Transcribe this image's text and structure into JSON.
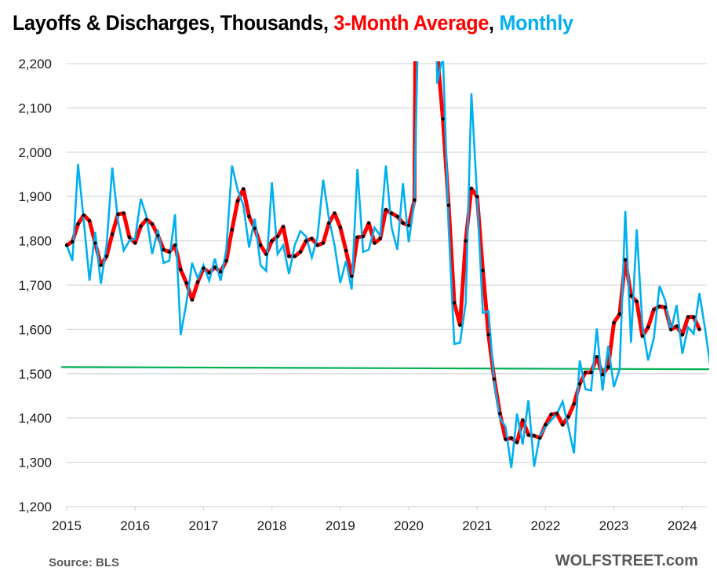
{
  "title": {
    "part1": "Layoffs & Discharges, Thousands, ",
    "part2": "3-Month Average",
    "part3": ", ",
    "part4": "Monthly"
  },
  "colors": {
    "monthly": "#00b0f0",
    "avg": "#ff0000",
    "avg_dots": "#000000",
    "reference": "#00b050",
    "grid": "#d9d9d9"
  },
  "footer": {
    "source": "Source: BLS",
    "brand": "WOLFSTREET.com"
  },
  "chart_data": {
    "type": "line",
    "title": "Layoffs & Discharges, Thousands, 3-Month Average, Monthly",
    "xlabel": "",
    "ylabel": "",
    "ylim": [
      1200,
      2200
    ],
    "yticks": [
      1200,
      1300,
      1400,
      1500,
      1600,
      1700,
      1800,
      1900,
      2000,
      2100,
      2200
    ],
    "ytick_labels": [
      "1,200",
      "1,300",
      "1,400",
      "1,500",
      "1,600",
      "1,700",
      "1,800",
      "1,900",
      "2,000",
      "2,100",
      "2,200"
    ],
    "xticks": [
      "2015",
      "2016",
      "2017",
      "2018",
      "2019",
      "2020",
      "2021",
      "2022",
      "2023",
      "2024"
    ],
    "x_start": "2015-01",
    "x_end": "2024-04",
    "grid": true,
    "legend": "in-title",
    "series": [
      {
        "name": "Monthly",
        "color": "#00b0f0",
        "values": [
          1790,
          1755,
          1973,
          1845,
          1710,
          1820,
          1703,
          1790,
          1965,
          1845,
          1778,
          1800,
          1805,
          1895,
          1855,
          1770,
          1825,
          1750,
          1755,
          1860,
          1587,
          1660,
          1750,
          1715,
          1745,
          1710,
          1760,
          1710,
          1780,
          1970,
          1915,
          1880,
          1785,
          1850,
          1745,
          1732,
          1932,
          1770,
          1790,
          1725,
          1790,
          1822,
          1810,
          1762,
          1808,
          1938,
          1850,
          1790,
          1705,
          1755,
          1690,
          1962,
          1775,
          1780,
          1830,
          1812,
          1970,
          1830,
          1780,
          1930,
          1797,
          1890,
          2500,
          9000,
          3000,
          2155,
          2220,
          1830,
          1567,
          1570,
          1660,
          2133,
          1900,
          1637,
          1641,
          1480,
          1400,
          1380,
          1287,
          1410,
          1340,
          1440,
          1290,
          1360,
          1380,
          1395,
          1410,
          1437,
          1380,
          1320,
          1530,
          1465,
          1462,
          1602,
          1462,
          1563,
          1470,
          1510,
          1867,
          1570,
          1826,
          1610,
          1530,
          1580,
          1698,
          1665,
          1595,
          1655,
          1545,
          1605,
          1590,
          1682,
          1600,
          1510
        ]
      },
      {
        "name": "3-Month Average",
        "color": "#ff0000",
        "values": [
          1790,
          1798,
          1838,
          1858,
          1845,
          1795,
          1745,
          1765,
          1815,
          1860,
          1862,
          1808,
          1795,
          1833,
          1848,
          1838,
          1812,
          1780,
          1775,
          1790,
          1735,
          1705,
          1667,
          1707,
          1738,
          1728,
          1740,
          1730,
          1755,
          1825,
          1890,
          1917,
          1855,
          1828,
          1790,
          1770,
          1800,
          1810,
          1832,
          1765,
          1765,
          1775,
          1800,
          1805,
          1790,
          1795,
          1840,
          1862,
          1830,
          1778,
          1720,
          1808,
          1810,
          1840,
          1795,
          1805,
          1870,
          1862,
          1855,
          1840,
          1835,
          1892,
          4000,
          5500,
          4000,
          2225,
          2075,
          1880,
          1660,
          1610,
          1800,
          1918,
          1900,
          1733,
          1588,
          1488,
          1410,
          1352,
          1355,
          1345,
          1395,
          1362,
          1360,
          1355,
          1385,
          1408,
          1410,
          1385,
          1403,
          1432,
          1477,
          1503,
          1503,
          1538,
          1498,
          1515,
          1615,
          1635,
          1757,
          1676,
          1663,
          1585,
          1605,
          1645,
          1652,
          1650,
          1600,
          1607,
          1588,
          1628,
          1628,
          1600
        ]
      },
      {
        "name": "Reference level",
        "color": "#00b050",
        "values_start_end": [
          1515,
          1510
        ]
      }
    ]
  }
}
